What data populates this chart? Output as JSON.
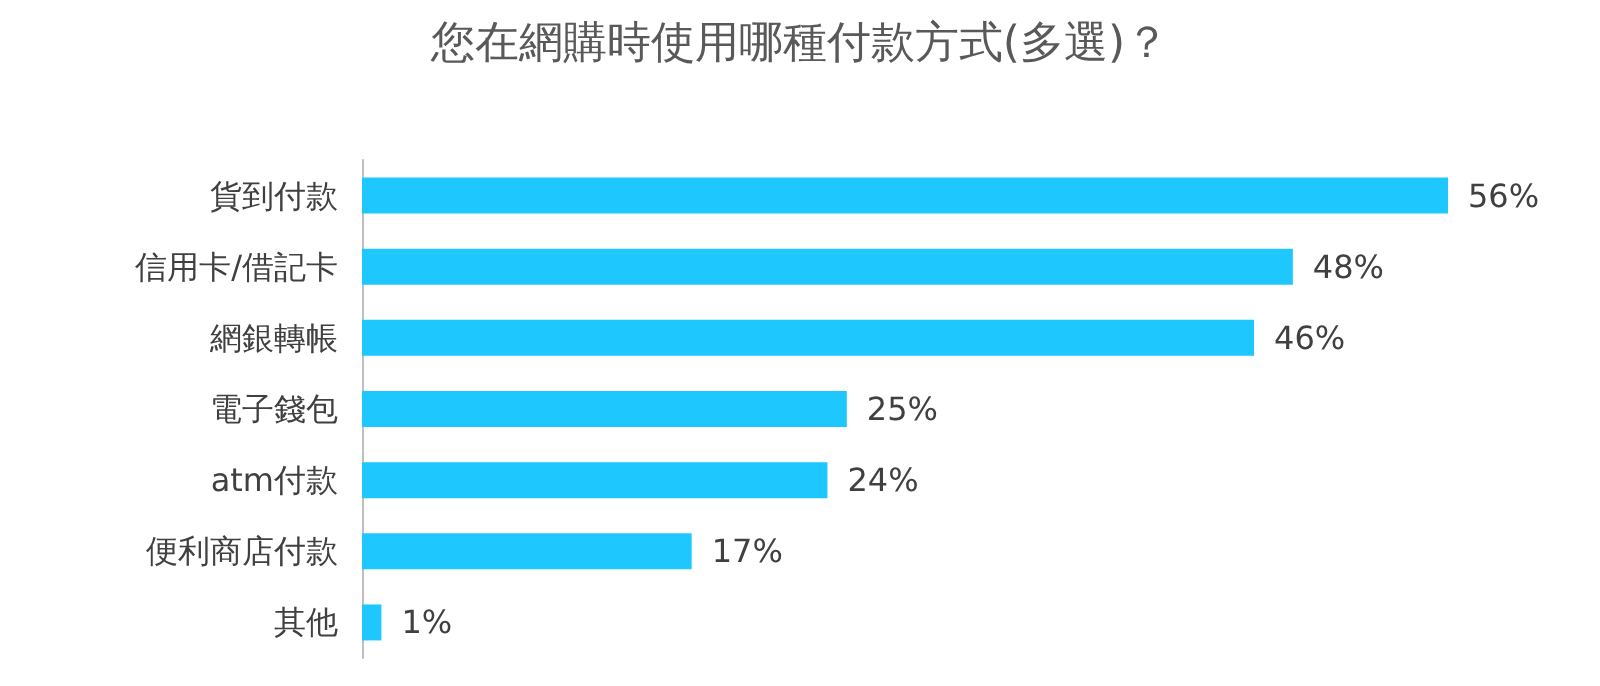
{
  "chart_data": {
    "type": "bar",
    "orientation": "horizontal",
    "title": "您在網購時使用哪種付款方式(多選)？",
    "categories": [
      "貨到付款",
      "信用卡/借記卡",
      "網銀轉帳",
      "電子錢包",
      "atm付款",
      "便利商店付款",
      "其他"
    ],
    "values": [
      56,
      48,
      46,
      25,
      24,
      17,
      1
    ],
    "value_labels": [
      "56%",
      "48%",
      "46%",
      "25%",
      "24%",
      "17%",
      "1%"
    ],
    "color": "#1ec8ff"
  }
}
